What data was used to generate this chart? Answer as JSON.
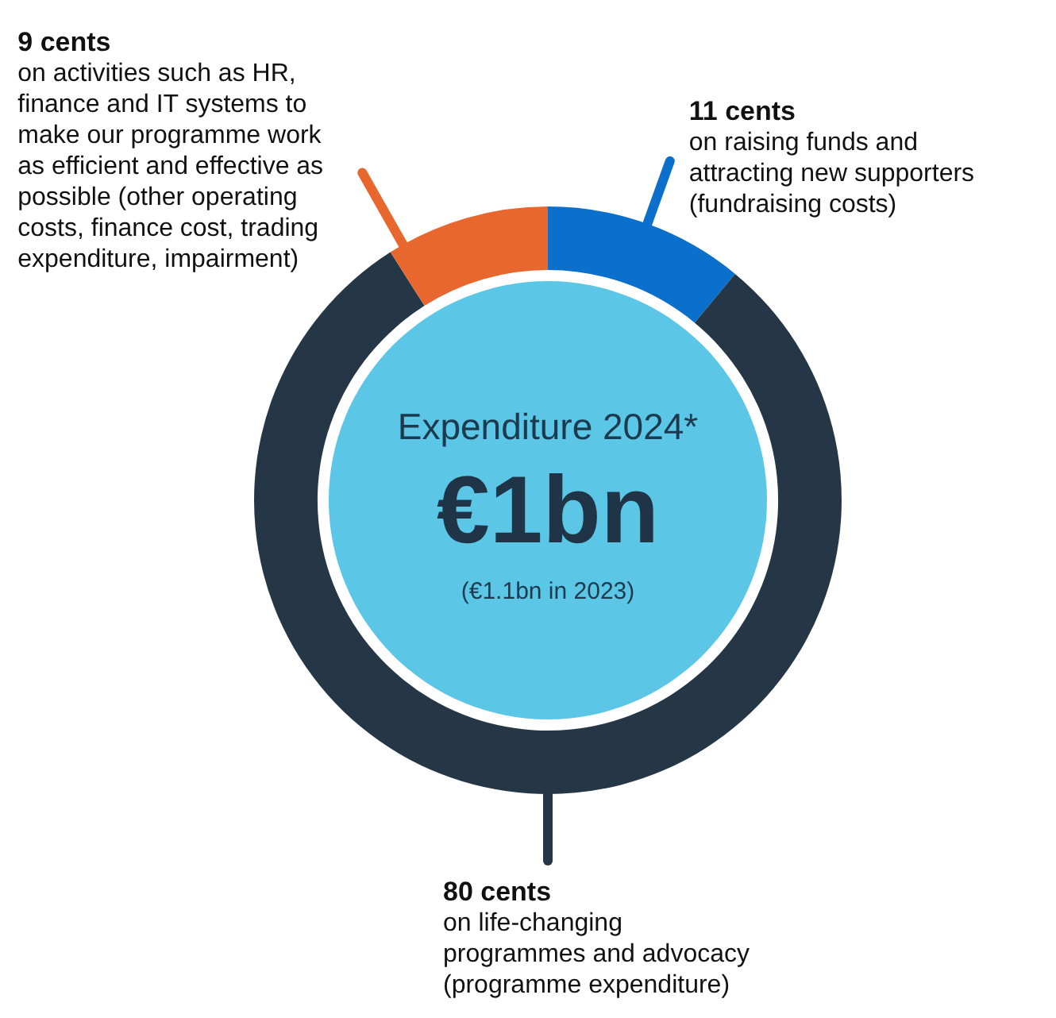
{
  "chart_data": {
    "type": "donut",
    "title": "Expenditure 2024*",
    "categories": [
      "on raising funds and attracting new supporters (fundraising costs)",
      "on life-changing programmes and advocacy (programme expenditure)",
      "on activities such as HR, finance and IT systems to make our programme work as efficient and effective as possible (other operating costs, finance cost, trading expenditure, impairment)"
    ],
    "values": [
      11,
      80,
      9
    ],
    "colors": [
      "#0b6fcc",
      "#253746",
      "#e8672f"
    ],
    "value_labels": [
      "11 cents",
      "80 cents",
      "9 cents"
    ],
    "annotations": [
      "€1bn",
      "(€1.1bn in 2023)"
    ]
  }
}
